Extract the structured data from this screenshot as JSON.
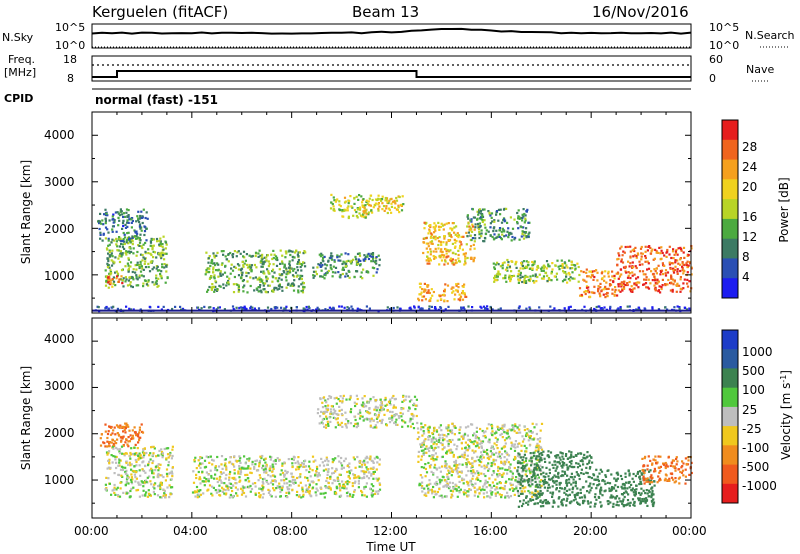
{
  "header": {
    "station": "Kerguelen (fitACF)",
    "beam": "Beam 13",
    "date": "16/Nov/2016"
  },
  "noise_panel": {
    "left_label": "N.Sky",
    "right_label": "N.Search",
    "left_ticks": [
      "10^5",
      "10^0"
    ],
    "right_ticks": [
      "10^5",
      "10^0"
    ]
  },
  "freq_panel": {
    "left_label_1": "Freq.",
    "left_label_2": "[MHz]",
    "left_ticks": [
      "18",
      "8"
    ],
    "right_ticks": [
      "60",
      "0"
    ],
    "right_label": "Nave"
  },
  "cpid": {
    "label": "CPID",
    "value": "normal (fast) -151"
  },
  "x_axis": {
    "ticks": [
      "00:00",
      "04:00",
      "08:00",
      "12:00",
      "16:00",
      "20:00",
      "00:00"
    ],
    "label": "Time UT"
  },
  "power_panel": {
    "ylabel": "Slant Range [km]",
    "y_ticks": [
      "1000",
      "2000",
      "3000",
      "4000"
    ],
    "colorbar_label": "Power [dB]",
    "colorbar_ticks": [
      "4",
      "8",
      "12",
      "16",
      "20",
      "24",
      "28"
    ],
    "colors": [
      "#1c1cf0",
      "#2a4fb4",
      "#3c7a64",
      "#4caa40",
      "#b8d426",
      "#f0d21e",
      "#f5a01e",
      "#f0641e",
      "#e61e1e"
    ]
  },
  "velocity_panel": {
    "ylabel": "Slant Range [km]",
    "y_ticks": [
      "1000",
      "2000",
      "3000",
      "4000"
    ],
    "colorbar_label": "Velocity [m s",
    "colorbar_label_sup": "-1",
    "colorbar_label_end": "]",
    "colorbar_ticks": [
      "1000",
      "500",
      "100",
      "25",
      "-25",
      "-100",
      "-500",
      "-1000"
    ],
    "colors": [
      "#1c3cc8",
      "#2a5aa0",
      "#3c8250",
      "#50c83c",
      "#bebebe",
      "#f0c81e",
      "#f08c1e",
      "#f05a1e",
      "#e61e1e"
    ]
  },
  "chart_data": {
    "type": "heatmap",
    "x_range_hours": [
      0,
      24
    ],
    "y_range_km": [
      180,
      4500
    ],
    "power_regions": [
      {
        "t0": 0.5,
        "t1": 3.0,
        "r0": 700,
        "r1": 1800,
        "power_db": 14
      },
      {
        "t0": 0.2,
        "t1": 2.2,
        "r0": 1700,
        "r1": 2400,
        "power_db": 10
      },
      {
        "t0": 0.6,
        "t1": 1.2,
        "r0": 700,
        "r1": 1000,
        "power_db": 26
      },
      {
        "t0": 4.5,
        "t1": 8.5,
        "r0": 600,
        "r1": 1500,
        "power_db": 14
      },
      {
        "t0": 8.8,
        "t1": 11.5,
        "r0": 900,
        "r1": 1450,
        "power_db": 12
      },
      {
        "t0": 9.5,
        "t1": 11.2,
        "r0": 2200,
        "r1": 2700,
        "power_db": 18
      },
      {
        "t0": 10.8,
        "t1": 12.5,
        "r0": 2300,
        "r1": 2700,
        "power_db": 20
      },
      {
        "t0": 13.2,
        "t1": 15.3,
        "r0": 1200,
        "r1": 2100,
        "power_db": 22
      },
      {
        "t0": 13.0,
        "t1": 15.0,
        "r0": 400,
        "r1": 800,
        "power_db": 24
      },
      {
        "t0": 15.0,
        "t1": 17.5,
        "r0": 1700,
        "r1": 2400,
        "power_db": 12
      },
      {
        "t0": 16.0,
        "t1": 19.5,
        "r0": 800,
        "r1": 1300,
        "power_db": 16
      },
      {
        "t0": 19.5,
        "t1": 21.0,
        "r0": 500,
        "r1": 1100,
        "power_db": 26
      },
      {
        "t0": 21.0,
        "t1": 24.0,
        "r0": 600,
        "r1": 1600,
        "power_db": 28
      },
      {
        "t0": 0.0,
        "t1": 24.0,
        "r0": 200,
        "r1": 300,
        "power_db": 6
      }
    ],
    "velocity_regions": [
      {
        "t0": 0.3,
        "t1": 2.0,
        "r0": 1700,
        "r1": 2200,
        "velocity": -300
      },
      {
        "t0": 0.5,
        "t1": 3.2,
        "r0": 600,
        "r1": 1700,
        "velocity": 0
      },
      {
        "t0": 4.0,
        "t1": 11.5,
        "r0": 600,
        "r1": 1500,
        "velocity": 0
      },
      {
        "t0": 9.0,
        "t1": 13.0,
        "r0": 2100,
        "r1": 2800,
        "velocity": 0
      },
      {
        "t0": 13.0,
        "t1": 18.0,
        "r0": 600,
        "r1": 2200,
        "velocity": 0
      },
      {
        "t0": 17.0,
        "t1": 20.0,
        "r0": 400,
        "r1": 1600,
        "velocity": 150
      },
      {
        "t0": 20.0,
        "t1": 22.5,
        "r0": 400,
        "r1": 1200,
        "velocity": 200
      },
      {
        "t0": 22.0,
        "t1": 24.0,
        "r0": 900,
        "r1": 1500,
        "velocity": -300
      }
    ],
    "frequency_mhz": [
      {
        "t0": 0.0,
        "t1": 1.0,
        "value": 8
      },
      {
        "t0": 1.0,
        "t1": 13.0,
        "value": 12
      },
      {
        "t0": 13.0,
        "t1": 24.0,
        "value": 8
      }
    ]
  }
}
